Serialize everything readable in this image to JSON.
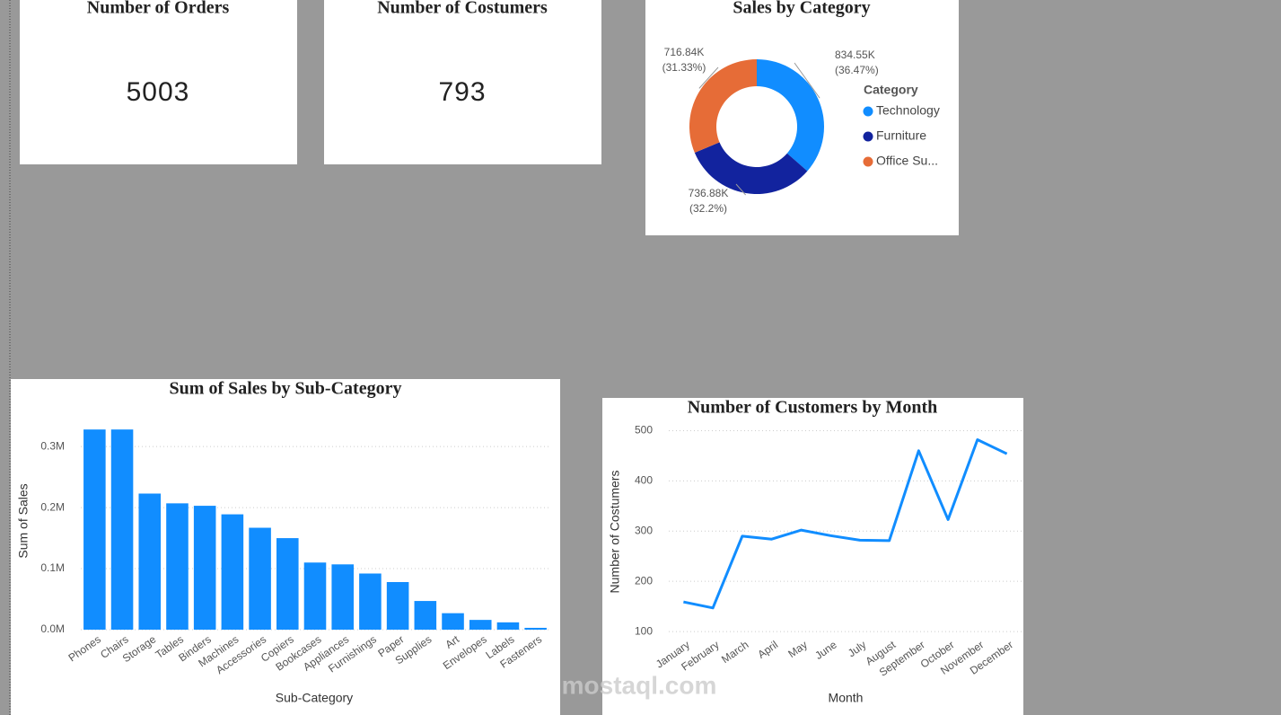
{
  "cards": [
    {
      "title": "Number of Orders",
      "value": 5003
    },
    {
      "title": "Number of Costumers",
      "value": 793
    }
  ],
  "watermark": "mostaql.com",
  "chart_data": [
    {
      "type": "donut",
      "title": "Sales by Category",
      "legend_title": "Category",
      "categories": [
        "Technology",
        "Furniture",
        "Office Su..."
      ],
      "values": [
        834.55,
        736.88,
        716.84
      ],
      "value_labels": [
        "834.55K",
        "736.88K",
        "716.84K"
      ],
      "percent_labels": [
        "(36.47%)",
        "(32.2%)",
        "(31.33%)"
      ],
      "colors": [
        "#118DFF",
        "#12239E",
        "#E66C37"
      ]
    },
    {
      "type": "bar",
      "title": "Sum of Sales by Sub-Category",
      "x_label": "Sub-Category",
      "y_label": "Sum of Sales",
      "categories": [
        "Phones",
        "Chairs",
        "Storage",
        "Tables",
        "Binders",
        "Machines",
        "Accessories",
        "Copiers",
        "Bookcases",
        "Appliances",
        "Furnishings",
        "Paper",
        "Supplies",
        "Art",
        "Envelopes",
        "Labels",
        "Fasteners"
      ],
      "values": [
        0.328,
        0.328,
        0.223,
        0.207,
        0.203,
        0.189,
        0.167,
        0.15,
        0.11,
        0.107,
        0.092,
        0.078,
        0.047,
        0.027,
        0.016,
        0.012,
        0.003
      ],
      "color": "#118DFF",
      "ylim": [
        0,
        0.34
      ],
      "yticks": [
        {
          "value": 0,
          "label": "0.0M"
        },
        {
          "value": 0.1,
          "label": "0.1M"
        },
        {
          "value": 0.2,
          "label": "0.2M"
        },
        {
          "value": 0.3,
          "label": "0.3M"
        }
      ],
      "grid": true
    },
    {
      "type": "line",
      "title": "Number of Customers by Month",
      "x_label": "Month",
      "y_label": "Number of Costumers",
      "categories": [
        "January",
        "February",
        "March",
        "April",
        "May",
        "June",
        "July",
        "August",
        "September",
        "October",
        "November",
        "December"
      ],
      "values": [
        159,
        147,
        290,
        284,
        302,
        291,
        282,
        281,
        460,
        323,
        482,
        454
      ],
      "color": "#118DFF",
      "ylim": [
        93,
        508
      ],
      "yticks": [
        100,
        200,
        300,
        400,
        500
      ],
      "grid": true
    }
  ]
}
